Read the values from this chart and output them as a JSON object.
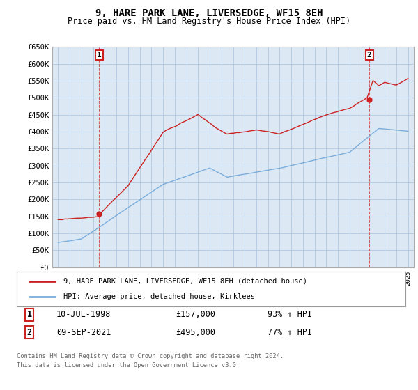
{
  "title": "9, HARE PARK LANE, LIVERSEDGE, WF15 8EH",
  "subtitle": "Price paid vs. HM Land Registry's House Price Index (HPI)",
  "ylim": [
    0,
    650000
  ],
  "yticks": [
    0,
    50000,
    100000,
    150000,
    200000,
    250000,
    300000,
    350000,
    400000,
    450000,
    500000,
    550000,
    600000,
    650000
  ],
  "ytick_labels": [
    "£0",
    "£50K",
    "£100K",
    "£150K",
    "£200K",
    "£250K",
    "£300K",
    "£350K",
    "£400K",
    "£450K",
    "£500K",
    "£550K",
    "£600K",
    "£650K"
  ],
  "hpi_color": "#7aacdb",
  "price_color": "#cc2222",
  "chart_bg": "#dce9f5",
  "marker_color": "#cc2222",
  "point1_x": 1998.53,
  "point1_y": 157000,
  "point2_x": 2021.69,
  "point2_y": 495000,
  "legend_line1": "9, HARE PARK LANE, LIVERSEDGE, WF15 8EH (detached house)",
  "legend_line2": "HPI: Average price, detached house, Kirklees",
  "footnote_line1": "Contains HM Land Registry data © Crown copyright and database right 2024.",
  "footnote_line2": "This data is licensed under the Open Government Licence v3.0.",
  "background_color": "#ffffff",
  "grid_color": "#b0c8e0",
  "xmin": 1994.5,
  "xmax": 2025.5
}
